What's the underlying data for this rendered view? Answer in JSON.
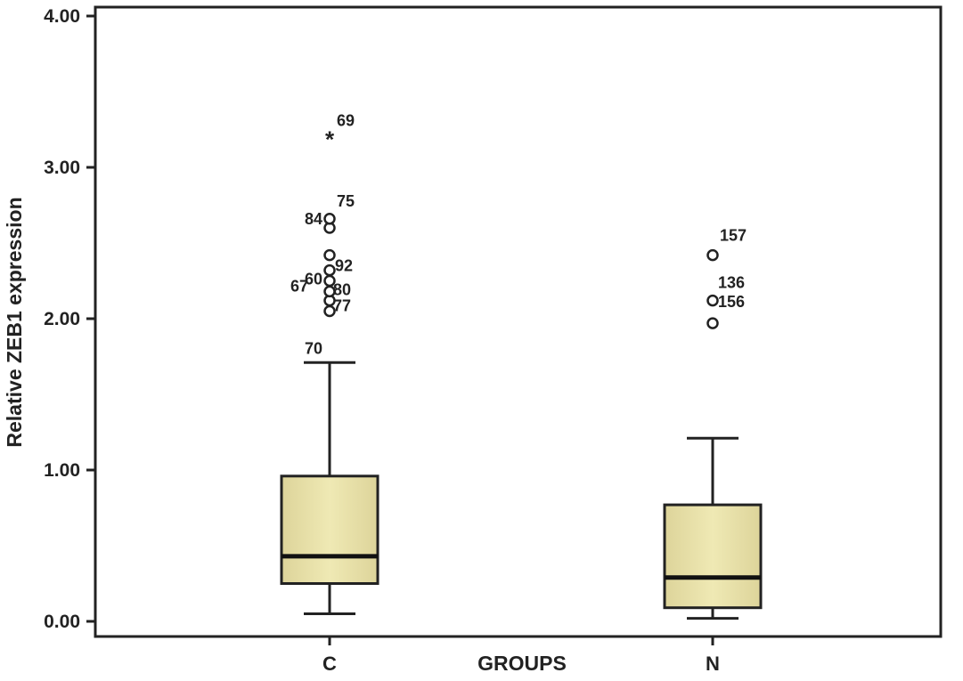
{
  "chart_data": {
    "type": "boxplot",
    "xlabel": "GROUPS",
    "ylabel": "Relative ZEB1 expression",
    "ylim": [
      0,
      4
    ],
    "yticks": [
      "0.00",
      "1.00",
      "2.00",
      "3.00",
      "4.00"
    ],
    "yticks_values": [
      0,
      1,
      2,
      3,
      4
    ],
    "grid": false,
    "box_color": "#efe9b4",
    "categories": [
      "C",
      "N"
    ],
    "boxes": [
      {
        "category": "C",
        "whisker_low": 0.05,
        "q1": 0.25,
        "median": 0.43,
        "q3": 0.96,
        "whisker_high": 1.71,
        "outliers": [
          {
            "label": "70",
            "value": 2.05,
            "marker": "circle"
          },
          {
            "label": "77",
            "value": 2.12,
            "marker": "circle"
          },
          {
            "label": "67",
            "value": 2.18,
            "marker": "circle"
          },
          {
            "label": "80",
            "value": 2.25,
            "marker": "circle"
          },
          {
            "label": "60",
            "value": 2.32,
            "marker": "circle"
          },
          {
            "label": "92",
            "value": 2.42,
            "marker": "circle"
          },
          {
            "label": "84",
            "value": 2.6,
            "marker": "circle"
          },
          {
            "label": "75",
            "value": 2.66,
            "marker": "circle"
          },
          {
            "label": "69",
            "value": 3.19,
            "marker": "star"
          }
        ]
      },
      {
        "category": "N",
        "whisker_low": 0.02,
        "q1": 0.09,
        "median": 0.29,
        "q3": 0.77,
        "whisker_high": 1.21,
        "outliers": [
          {
            "label": "156",
            "value": 1.97,
            "marker": "circle"
          },
          {
            "label": "136",
            "value": 2.12,
            "marker": "circle"
          },
          {
            "label": "157",
            "value": 2.42,
            "marker": "circle"
          }
        ]
      }
    ]
  }
}
